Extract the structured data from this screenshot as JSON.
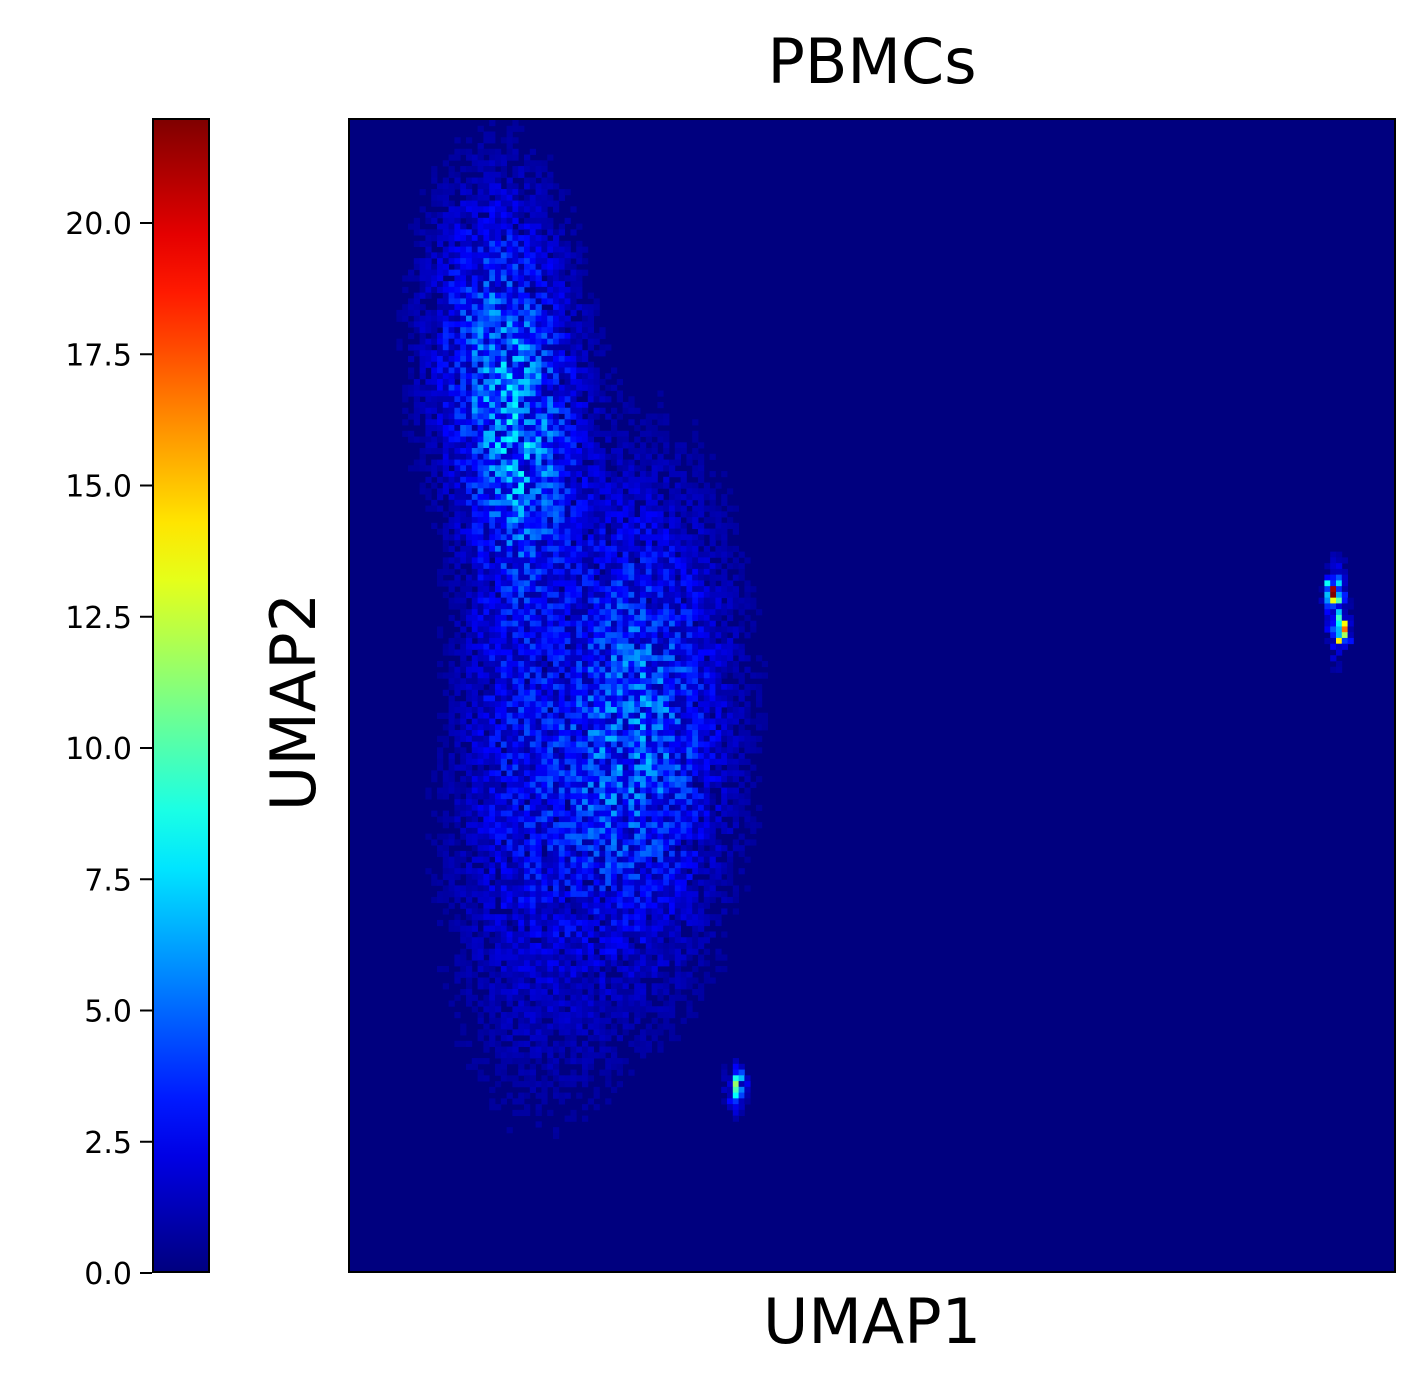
{
  "chart_data": {
    "type": "heatmap",
    "title": "PBMCs",
    "xlabel": "UMAP1",
    "ylabel": "UMAP2",
    "colormap": "jet",
    "colorbar": {
      "range": [
        0,
        22
      ],
      "ticks": [
        0.0,
        2.5,
        5.0,
        7.5,
        10.0,
        12.5,
        15.0,
        17.5,
        20.0
      ],
      "tick_labels": [
        "0.0",
        "2.5",
        "5.0",
        "7.5",
        "10.0",
        "12.5",
        "15.0",
        "17.5",
        "20.0"
      ]
    },
    "axes": {
      "x_ticks": [],
      "y_ticks": []
    },
    "background_value": 0,
    "grid": false,
    "bins": [
      180,
      200
    ],
    "clusters": [
      {
        "x": 0.14,
        "y": 0.81,
        "sx": 0.045,
        "sy": 0.09,
        "peak": 3.6
      },
      {
        "x": 0.17,
        "y": 0.7,
        "sx": 0.035,
        "sy": 0.07,
        "peak": 2.6
      },
      {
        "x": 0.28,
        "y": 0.48,
        "sx": 0.055,
        "sy": 0.13,
        "peak": 3.8
      },
      {
        "x": 0.18,
        "y": 0.36,
        "sx": 0.06,
        "sy": 0.14,
        "peak": 1.6
      },
      {
        "x": 0.15,
        "y": 0.55,
        "sx": 0.03,
        "sy": 0.12,
        "peak": 1.3
      },
      {
        "x": 0.37,
        "y": 0.16,
        "sx": 0.006,
        "sy": 0.012,
        "peak": 6.5
      },
      {
        "x": 0.94,
        "y": 0.59,
        "sx": 0.004,
        "sy": 0.006,
        "peak": 14
      },
      {
        "x": 0.95,
        "y": 0.555,
        "sx": 0.005,
        "sy": 0.006,
        "peak": 16
      },
      {
        "x": 0.945,
        "y": 0.575,
        "sx": 0.006,
        "sy": 0.025,
        "peak": 5
      }
    ]
  }
}
